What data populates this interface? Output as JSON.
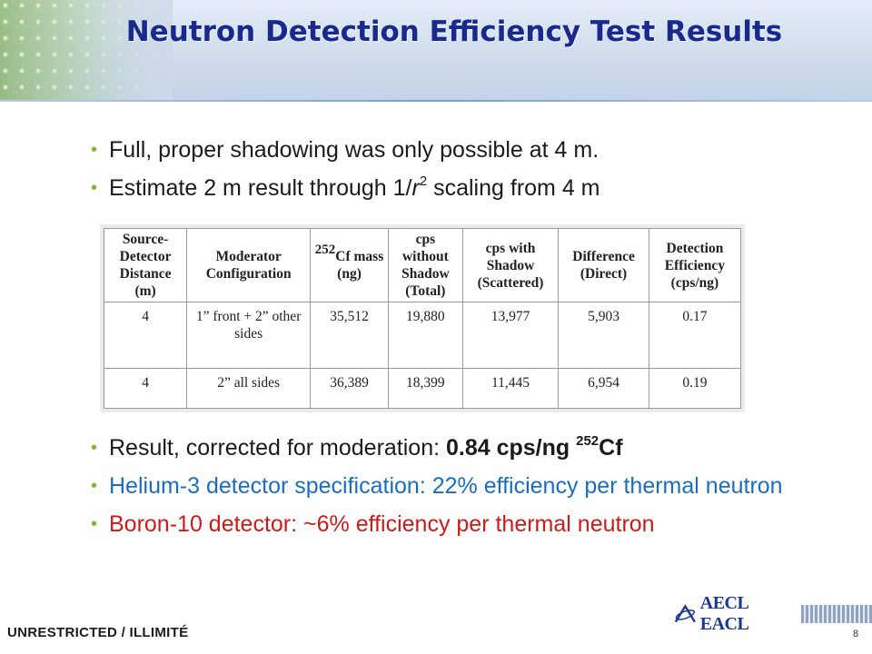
{
  "title": "Neutron Detection Efficiency Test Results",
  "bullets_top": [
    {
      "text": "Full, proper shadowing was only possible at 4 m."
    },
    {
      "pre": "Estimate 2 m result through 1/",
      "italic": "r",
      "sup": "2",
      "post": " scaling from 4 m"
    }
  ],
  "table": {
    "headers": [
      "Source-Detector Distance (m)",
      "Moderator Configuration",
      "Cf mass (ng)",
      "cps without Shadow (Total)",
      "cps with Shadow (Scattered)",
      "Difference (Direct)",
      "Detection Efficiency (cps/ng)"
    ],
    "header_cf_sup": "252",
    "rows": [
      [
        "4",
        "1” front + 2” other sides",
        "35,512",
        "19,880",
        "13,977",
        "5,903",
        "0.17"
      ],
      [
        "4",
        "2” all sides",
        "36,389",
        "18,399",
        "11,445",
        "6,954",
        "0.19"
      ]
    ]
  },
  "bullets_bottom": {
    "result": {
      "pre": "Result, corrected for moderation: ",
      "bold": "0.84 cps/ng ",
      "sup": "252",
      "bold_tail": "Cf"
    },
    "helium": "Helium-3 detector specification: 22% efficiency per thermal neutron",
    "boron": "Boron-10 detector: ~6% efficiency per thermal neutron"
  },
  "footer": {
    "classification": "UNRESTRICTED / ILLIMITÉ",
    "logo_text": "AECL EACL",
    "page_number": "8"
  },
  "colors": {
    "title": "#1a2a8c",
    "bullet_dot": "#7db83a",
    "helium_text": "#1a6ec2",
    "boron_text": "#cc1b1b"
  }
}
